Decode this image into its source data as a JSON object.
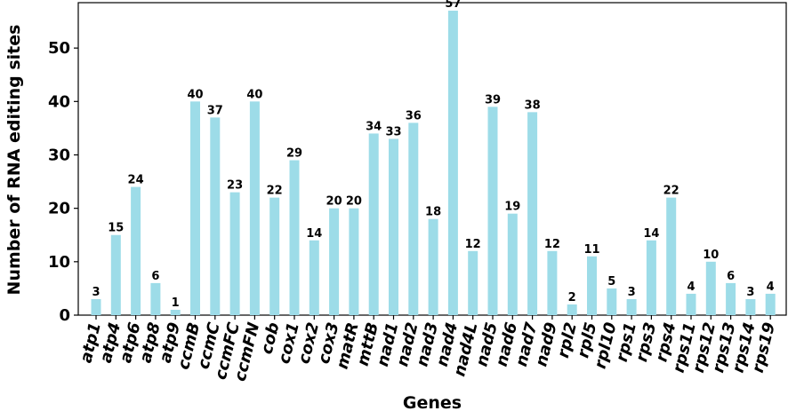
{
  "chart_data": {
    "type": "bar",
    "xlabel": "Genes",
    "ylabel": "Number of RNA editing sites",
    "ylim": [
      0,
      58.5
    ],
    "yticks": [
      0,
      10,
      20,
      30,
      40,
      50
    ],
    "grid": false,
    "bar_color": "#9ddce8",
    "categories": [
      "atp1",
      "atp4",
      "atp6",
      "atp8",
      "atp9",
      "ccmB",
      "ccmC",
      "ccmFC",
      "ccmFN",
      "cob",
      "cox1",
      "cox2",
      "cox3",
      "matR",
      "mttB",
      "nad1",
      "nad2",
      "nad3",
      "nad4",
      "nad4L",
      "nad5",
      "nad6",
      "nad7",
      "nad9",
      "rpl2",
      "rpl5",
      "rpl10",
      "rps1",
      "rps3",
      "rps4",
      "rps11",
      "rps12",
      "rps13",
      "rps14",
      "rps19"
    ],
    "values": [
      3,
      15,
      24,
      6,
      1,
      40,
      37,
      23,
      40,
      22,
      29,
      14,
      20,
      20,
      34,
      33,
      36,
      18,
      57,
      12,
      39,
      19,
      38,
      12,
      2,
      11,
      5,
      3,
      14,
      22,
      4,
      10,
      6,
      3,
      4
    ]
  }
}
